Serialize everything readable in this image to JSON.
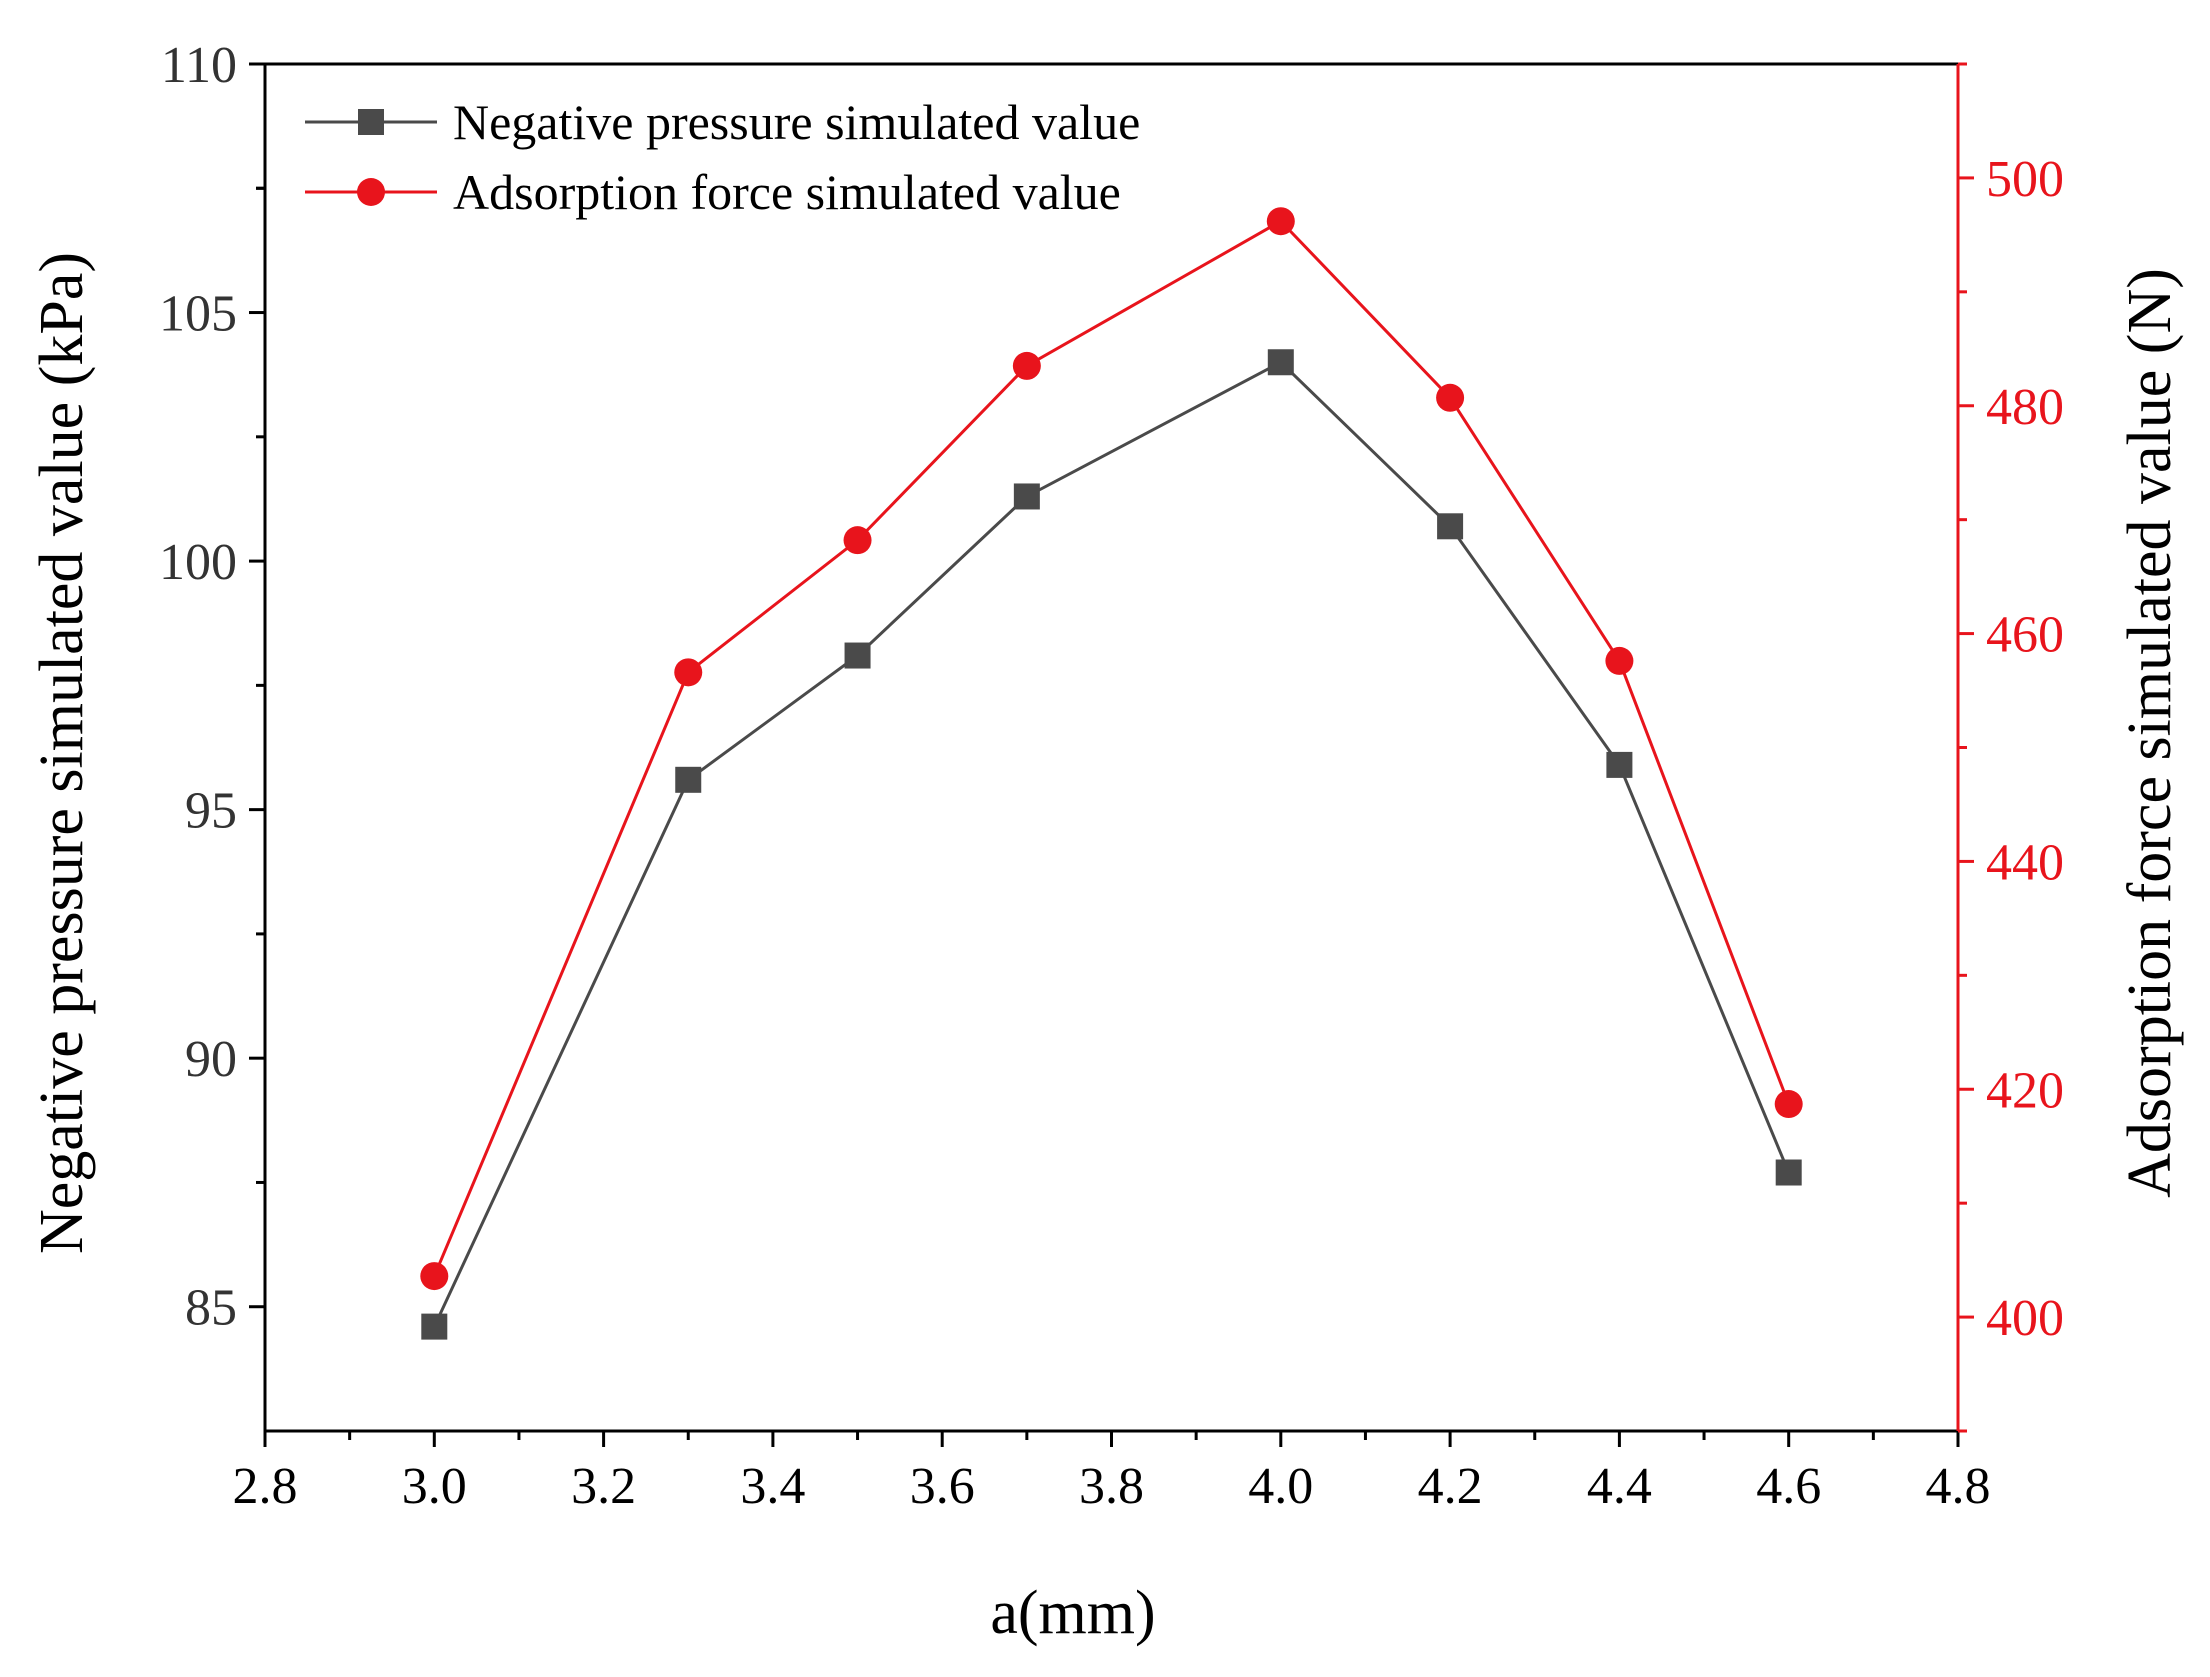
{
  "chart_data": {
    "type": "line",
    "title": "",
    "xlabel": "a(mm)",
    "ylabel_left": "Negative pressure simulated value (kPa)",
    "ylabel_right": "Adsorption force simulated value (N)",
    "xlim": [
      2.8,
      4.8
    ],
    "ylim_left": [
      82.5,
      110
    ],
    "ylim_right": [
      390,
      510
    ],
    "x_ticks": [
      "2.8",
      "3.0",
      "3.2",
      "3.4",
      "3.6",
      "3.8",
      "4.0",
      "4.2",
      "4.4",
      "4.6",
      "4.8"
    ],
    "y_left_ticks": [
      "85",
      "90",
      "95",
      "100",
      "105",
      "110"
    ],
    "y_right_ticks": [
      "400",
      "420",
      "440",
      "460",
      "480",
      "500"
    ],
    "legend_position": "top-left",
    "series": [
      {
        "name": "Negative pressure simulated value",
        "axis": "left",
        "color": "#4a4a4a",
        "marker": "square",
        "x": [
          3.0,
          3.3,
          3.5,
          3.7,
          4.0,
          4.2,
          4.4,
          4.6
        ],
        "values": [
          84.6,
          95.6,
          98.1,
          101.3,
          104.0,
          100.7,
          95.9,
          87.7
        ]
      },
      {
        "name": "Adsorption force simulated value",
        "axis": "right",
        "color": "#e8141c",
        "marker": "circle",
        "x": [
          3.0,
          3.3,
          3.5,
          3.7,
          4.0,
          4.2,
          4.4,
          4.6
        ],
        "values": [
          403.6,
          456.6,
          468.2,
          483.5,
          496.2,
          480.7,
          457.6,
          418.7
        ]
      }
    ]
  }
}
